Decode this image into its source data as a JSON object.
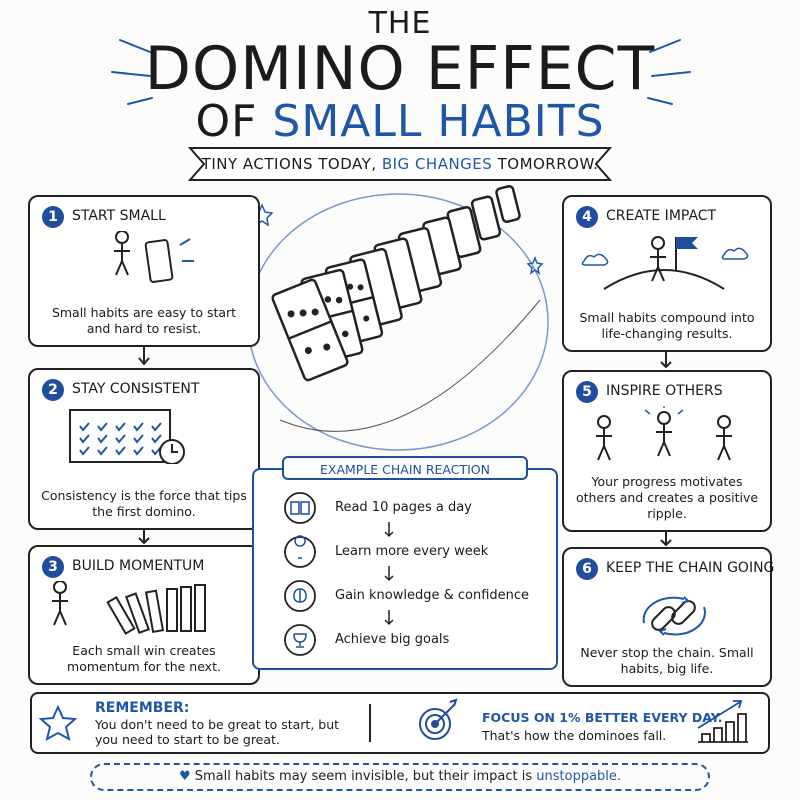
{
  "header": {
    "line1": "THE",
    "line2": "DOMINO EFFECT",
    "line3_prefix": "OF",
    "line3_highlight": "SMALL HABITS"
  },
  "banner": {
    "before": "TINY ACTIONS TODAY,",
    "highlight": "BIG CHANGES",
    "after": "TOMORROW."
  },
  "steps": [
    {
      "number": "1",
      "title": "START SMALL",
      "text": "Small habits are easy to start and hard to resist."
    },
    {
      "number": "2",
      "title": "STAY CONSISTENT",
      "text": "Consistency is the force that tips the first domino."
    },
    {
      "number": "3",
      "title": "BUILD MOMENTUM",
      "text": "Each small win creates momentum for the next."
    },
    {
      "number": "4",
      "title": "CREATE IMPACT",
      "text": "Small habits compound into life-changing results."
    },
    {
      "number": "5",
      "title": "INSPIRE OTHERS",
      "text": "Your progress motivates others and creates a positive ripple."
    },
    {
      "number": "6",
      "title": "KEEP THE CHAIN GOING",
      "text": "Never stop the chain. Small habits, big life."
    }
  ],
  "example": {
    "title": "EXAMPLE CHAIN REACTION",
    "items": [
      "Read 10 pages a day",
      "Learn more every week",
      "Gain knowledge & confidence",
      "Achieve big goals"
    ]
  },
  "remember": {
    "label": "REMEMBER:",
    "text": "You don't need to be great to start, but you need to start to be great."
  },
  "focus": {
    "title": "FOCUS ON 1% BETTER EVERY DAY.",
    "text": "That's how the dominoes fall."
  },
  "footer": {
    "text": "Small habits may seem invisible, but their impact is",
    "highlight": "unstoppable."
  }
}
